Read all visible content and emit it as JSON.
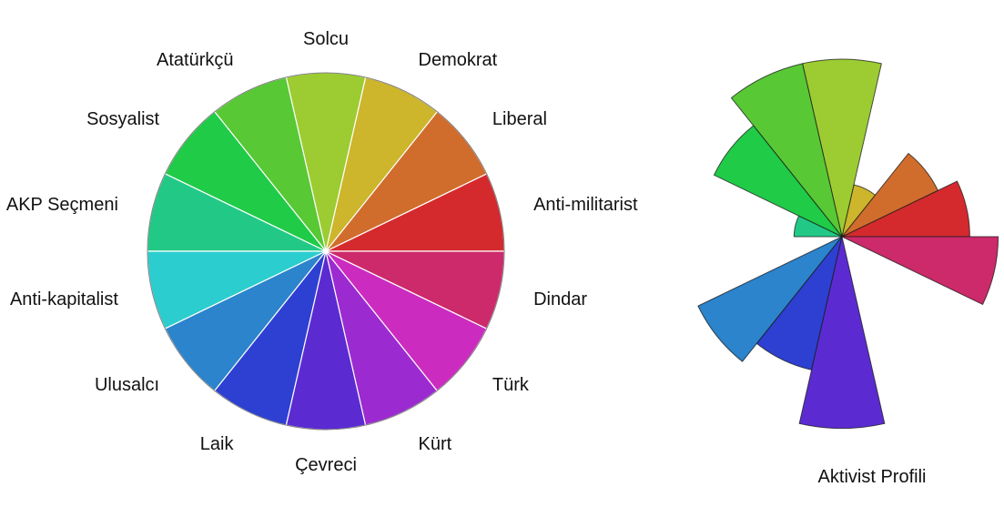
{
  "chart_data": [
    {
      "type": "pie",
      "title": "",
      "categories": [
        "Anti-militarist",
        "Liberal",
        "Demokrat",
        "Solcu",
        "Atatürkçü",
        "Sosyalist",
        "AKP Seçmeni",
        "Anti-kapitalist",
        "Ulusalcı",
        "Laik",
        "Çevreci",
        "Kürt",
        "Türk",
        "Dindar"
      ],
      "values": [
        1,
        1,
        1,
        1,
        1,
        1,
        1,
        1,
        1,
        1,
        1,
        1,
        1,
        1
      ],
      "colors": [
        "#d42a2e",
        "#d16d2c",
        "#cdb52c",
        "#9ccc32",
        "#58c835",
        "#20cb47",
        "#22c986",
        "#2bcdcf",
        "#2b84cc",
        "#2d40d1",
        "#5b2bd1",
        "#9b2bd0",
        "#cc2bbf",
        "#cc2a6a"
      ],
      "start_angle_deg": 0,
      "direction": "counterclockwise"
    },
    {
      "type": "polar-area",
      "title": "Aktivist Profili",
      "categories": [
        "Anti-militarist",
        "Liberal",
        "Demokrat",
        "Solcu",
        "Atatürkçü",
        "Sosyalist",
        "AKP Seçmeni",
        "Anti-kapitalist",
        "Ulusalcı",
        "Laik",
        "Çevreci",
        "Kürt",
        "Türk",
        "Dindar"
      ],
      "values": [
        0.72,
        0.6,
        0.3,
        1.0,
        1.0,
        0.8,
        0.27,
        0.0,
        0.9,
        0.77,
        1.08,
        0.0,
        0.0,
        0.88
      ],
      "max_value": 1.0,
      "colors": [
        "#d42a2e",
        "#d16d2c",
        "#cdb52c",
        "#9ccc32",
        "#58c835",
        "#20cb47",
        "#22c986",
        "#2bcdcf",
        "#2b84cc",
        "#2d40d1",
        "#5b2bd1",
        "#9b2bd0",
        "#cc2bbf",
        "#cc2a6a"
      ],
      "start_angle_deg": 0,
      "direction": "counterclockwise"
    }
  ]
}
